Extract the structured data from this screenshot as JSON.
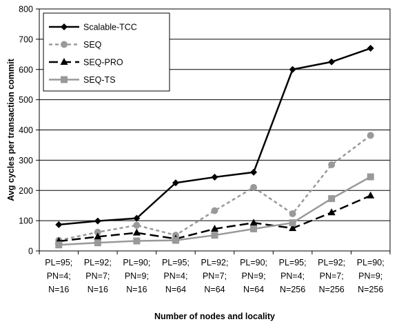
{
  "chart_data": {
    "type": "line",
    "title": "",
    "xlabel": "Number of nodes and locality",
    "ylabel": "Avg cycles per transaction commit",
    "ylim": [
      0,
      800
    ],
    "yticks": [
      0,
      100,
      200,
      300,
      400,
      500,
      600,
      700,
      800
    ],
    "grid": "horizontal",
    "legend_position": "top-left",
    "categories": [
      [
        "PL=95;",
        "PN=4;",
        "N=16"
      ],
      [
        "PL=92;",
        "PN=7;",
        "N=16"
      ],
      [
        "PL=90;",
        "PN=9;",
        "N=16"
      ],
      [
        "PL=95;",
        "PN=4;",
        "N=64"
      ],
      [
        "PL=92;",
        "PN=7;",
        "N=64"
      ],
      [
        "PL=90;",
        "PN=9;",
        "N=64"
      ],
      [
        "PL=95;",
        "PN=4;",
        "N=256"
      ],
      [
        "PL=92;",
        "PN=7;",
        "N=256"
      ],
      [
        "PL=90;",
        "PN=9;",
        "N=256"
      ]
    ],
    "series": [
      {
        "name": "Scalable-TCC",
        "values": [
          87,
          99,
          108,
          225,
          244,
          260,
          600,
          625,
          670
        ],
        "color": "#000000",
        "marker": "diamond",
        "dash": "solid"
      },
      {
        "name": "SEQ",
        "values": [
          35,
          62,
          85,
          52,
          133,
          210,
          123,
          285,
          382
        ],
        "color": "#999999",
        "marker": "circle",
        "dash": "dotted"
      },
      {
        "name": "SEQ-PRO",
        "values": [
          32,
          47,
          60,
          40,
          73,
          93,
          75,
          127,
          183
        ],
        "color": "#000000",
        "marker": "triangle",
        "dash": "dashed"
      },
      {
        "name": "SEQ-TS",
        "values": [
          20,
          27,
          33,
          35,
          52,
          73,
          93,
          173,
          245
        ],
        "color": "#999999",
        "marker": "square",
        "dash": "solid"
      }
    ]
  }
}
